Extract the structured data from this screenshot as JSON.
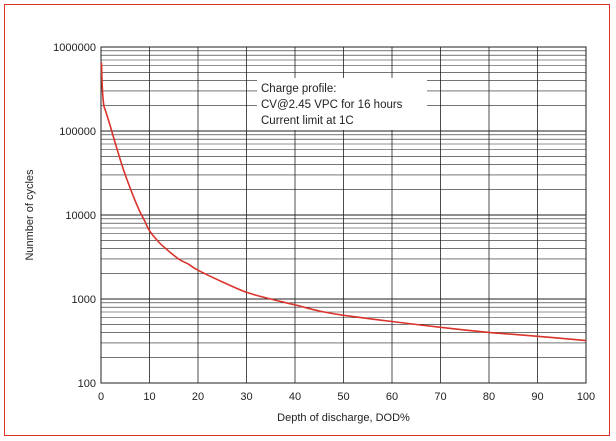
{
  "chart_data": {
    "type": "line",
    "xlabel": "Depth of discharge, DOD%",
    "ylabel": "Nunmber of cycles",
    "xlim": [
      0,
      100
    ],
    "ylim": [
      100,
      1000000
    ],
    "yscale": "log",
    "grid": true,
    "x_ticks": [
      "0",
      "10",
      "20",
      "30",
      "40",
      "50",
      "60",
      "70",
      "80",
      "90",
      "100"
    ],
    "y_ticks": [
      "100",
      "1000",
      "10000",
      "100000",
      "1000000"
    ],
    "annotation": [
      "Charge profile:",
      "CV@2.45 VPC for 16 hours",
      "Current limit at 1C"
    ],
    "series": [
      {
        "color": "#d9342b",
        "x": [
          0.1,
          0.3,
          0.6,
          1,
          2,
          3,
          4,
          5,
          6,
          7,
          8,
          9,
          10,
          12,
          14,
          16,
          18,
          20,
          25,
          30,
          35,
          40,
          45,
          50,
          60,
          70,
          80,
          90,
          100
        ],
        "y": [
          650000,
          300000,
          200000,
          170000,
          110000,
          70000,
          45000,
          30000,
          21000,
          15000,
          11000,
          8500,
          6500,
          4700,
          3700,
          3000,
          2600,
          2200,
          1600,
          1200,
          1000,
          850,
          720,
          640,
          540,
          460,
          400,
          360,
          320
        ]
      }
    ]
  }
}
